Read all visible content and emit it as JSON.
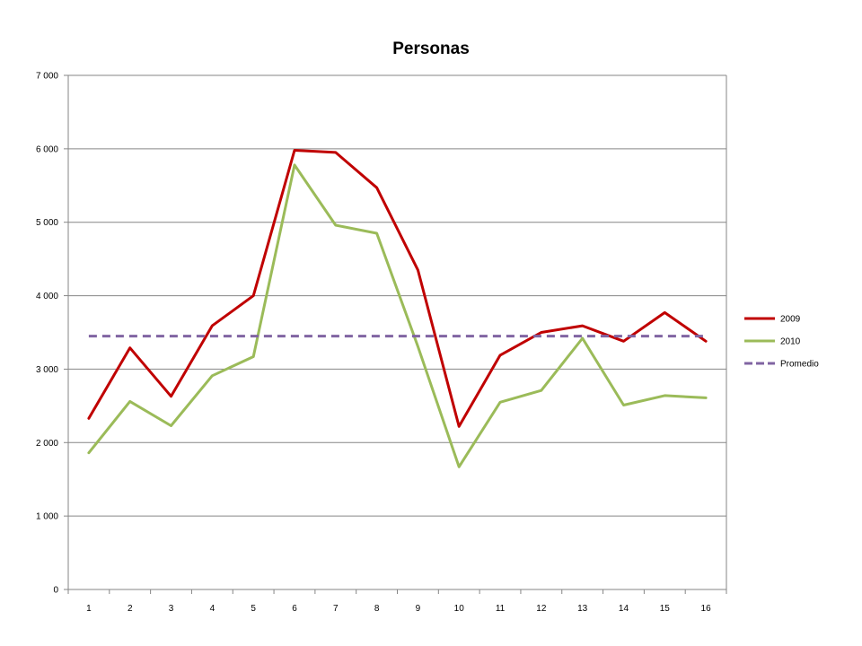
{
  "chart_data": {
    "type": "line",
    "title": "Personas",
    "xlabel": "",
    "ylabel": "",
    "categories": [
      "1",
      "2",
      "3",
      "4",
      "5",
      "6",
      "7",
      "8",
      "9",
      "10",
      "11",
      "12",
      "13",
      "14",
      "15",
      "16"
    ],
    "y_tick_labels": [
      "0",
      "1 000",
      "2 000",
      "3 000",
      "4 000",
      "5 000",
      "6 000",
      "7 000"
    ],
    "y_ticks": [
      0,
      1000,
      2000,
      3000,
      4000,
      5000,
      6000,
      7000
    ],
    "ylim": [
      0,
      7000
    ],
    "grid": true,
    "legend_position": "right",
    "series": [
      {
        "name": "2009",
        "color": "#C00000",
        "dashed": false,
        "values": [
          2330,
          3290,
          2630,
          3590,
          4000,
          5980,
          5950,
          5470,
          4350,
          2220,
          3190,
          3500,
          3590,
          3380,
          3770,
          3380
        ]
      },
      {
        "name": "2010",
        "color": "#9BBB59",
        "dashed": false,
        "values": [
          1860,
          2560,
          2230,
          2910,
          3170,
          5780,
          4960,
          4850,
          3310,
          1670,
          2550,
          2710,
          3420,
          2510,
          2640,
          2610
        ]
      },
      {
        "name": "Promedio",
        "color": "#8064A2",
        "dashed": true,
        "values": [
          3450,
          3450,
          3450,
          3450,
          3450,
          3450,
          3450,
          3450,
          3450,
          3450,
          3450,
          3450,
          3450,
          3450,
          3450,
          3450
        ]
      }
    ]
  }
}
